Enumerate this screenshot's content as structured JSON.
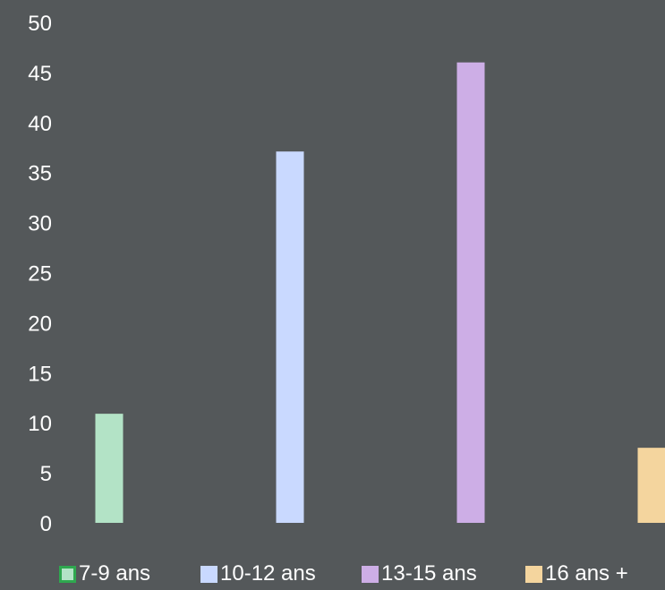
{
  "chart_data": {
    "type": "bar",
    "categories": [
      "7-9 ans",
      "10-12 ans",
      "13-15 ans",
      "16 ans +"
    ],
    "series": [
      {
        "name": "7-9 ans",
        "values": [
          10.9,
          null,
          null,
          null
        ],
        "color": "#b3e3c6"
      },
      {
        "name": "10-12 ans",
        "values": [
          null,
          37.1,
          null,
          null
        ],
        "color": "#c9d9ff"
      },
      {
        "name": "13-15 ans",
        "values": [
          null,
          null,
          46.0,
          null
        ],
        "color": "#cdaee6"
      },
      {
        "name": "16 ans +",
        "values": [
          null,
          null,
          null,
          7.5
        ],
        "color": "#f4d59e"
      }
    ],
    "yticks": [
      "0",
      "5",
      "10",
      "15",
      "20",
      "25",
      "30",
      "35",
      "40",
      "45",
      "50"
    ],
    "ylim": [
      0,
      50
    ],
    "title": "",
    "xlabel": "",
    "ylabel": "",
    "grid": false,
    "legend_position": "bottom",
    "background": "#54585a",
    "text_color": "#ffffff"
  },
  "legend": {
    "items": [
      {
        "label": "7-9 ans",
        "color": "#b3e3c6",
        "border": "#2fa84f"
      },
      {
        "label": "10-12 ans",
        "color": "#c9d9ff",
        "border": "#c9d9ff"
      },
      {
        "label": "13-15 ans",
        "color": "#cdaee6",
        "border": "#cdaee6"
      },
      {
        "label": "16 ans +",
        "color": "#f4d59e",
        "border": "#f4d59e"
      }
    ]
  }
}
